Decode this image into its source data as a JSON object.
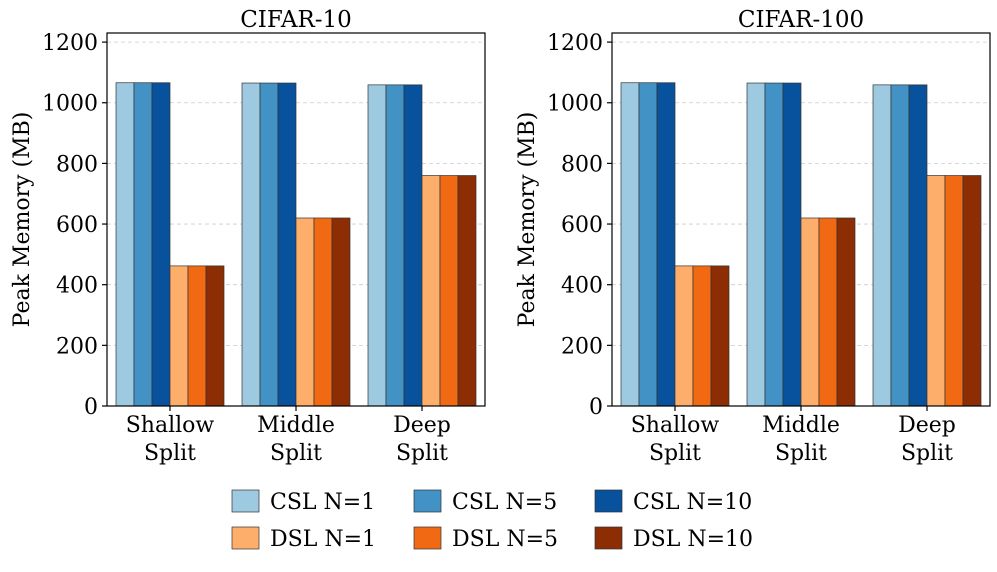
{
  "chart_data": [
    {
      "type": "bar",
      "title": "CIFAR-10",
      "xlabel": "",
      "ylabel": "Peak Memory (MB)",
      "ylim": [
        0,
        1230
      ],
      "yticks": [
        0,
        200,
        400,
        600,
        800,
        1000,
        1200
      ],
      "grid": true,
      "categories": [
        [
          "Shallow",
          "Split"
        ],
        [
          "Middle",
          "Split"
        ],
        [
          "Deep",
          "Split"
        ]
      ],
      "series": [
        {
          "name": "CSL N=1",
          "color": "#9ecae1",
          "values": [
            1066,
            1065,
            1059
          ]
        },
        {
          "name": "CSL N=5",
          "color": "#4292c6",
          "values": [
            1066,
            1065,
            1059
          ]
        },
        {
          "name": "CSL N=10",
          "color": "#08519c",
          "values": [
            1066,
            1065,
            1059
          ]
        },
        {
          "name": "DSL N=1",
          "color": "#fdae6b",
          "values": [
            462,
            620,
            760
          ]
        },
        {
          "name": "DSL N=5",
          "color": "#f16913",
          "values": [
            462,
            620,
            760
          ]
        },
        {
          "name": "DSL N=10",
          "color": "#8c2d04",
          "values": [
            462,
            620,
            760
          ]
        }
      ]
    },
    {
      "type": "bar",
      "title": "CIFAR-100",
      "xlabel": "",
      "ylabel": "Peak Memory (MB)",
      "ylim": [
        0,
        1230
      ],
      "yticks": [
        0,
        200,
        400,
        600,
        800,
        1000,
        1200
      ],
      "grid": true,
      "categories": [
        [
          "Shallow",
          "Split"
        ],
        [
          "Middle",
          "Split"
        ],
        [
          "Deep",
          "Split"
        ]
      ],
      "series": [
        {
          "name": "CSL N=1",
          "color": "#9ecae1",
          "values": [
            1066,
            1065,
            1059
          ]
        },
        {
          "name": "CSL N=5",
          "color": "#4292c6",
          "values": [
            1066,
            1065,
            1059
          ]
        },
        {
          "name": "CSL N=10",
          "color": "#08519c",
          "values": [
            1066,
            1065,
            1059
          ]
        },
        {
          "name": "DSL N=1",
          "color": "#fdae6b",
          "values": [
            462,
            620,
            760
          ]
        },
        {
          "name": "DSL N=5",
          "color": "#f16913",
          "values": [
            462,
            620,
            760
          ]
        },
        {
          "name": "DSL N=10",
          "color": "#8c2d04",
          "values": [
            462,
            620,
            760
          ]
        }
      ]
    }
  ],
  "legend": {
    "placement": "bottom-center",
    "entries": [
      {
        "label": "CSL N=1",
        "color": "#9ecae1"
      },
      {
        "label": "CSL N=5",
        "color": "#4292c6"
      },
      {
        "label": "CSL N=10",
        "color": "#08519c"
      },
      {
        "label": "DSL N=1",
        "color": "#fdae6b"
      },
      {
        "label": "DSL N=5",
        "color": "#f16913"
      },
      {
        "label": "DSL N=10",
        "color": "#8c2d04"
      }
    ]
  }
}
